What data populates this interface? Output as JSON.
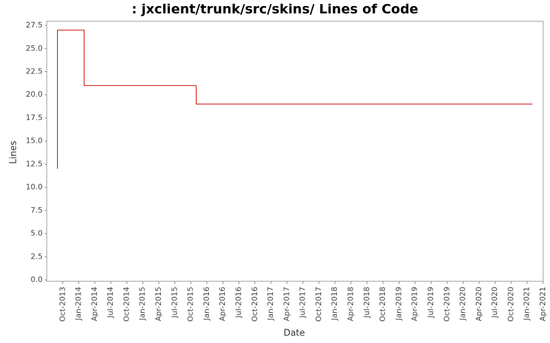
{
  "chart_data": {
    "type": "line",
    "title": ": jxclient/trunk/src/skins/ Lines of Code",
    "x_label": "Date",
    "y_label": "Lines",
    "x": [
      "2013-09",
      "2013-09",
      "2014-02",
      "2014-02",
      "2015-11",
      "2015-11",
      "2021-02"
    ],
    "series": [
      {
        "name": "Lines",
        "color": "#cc0000",
        "values": [
          12,
          27,
          27,
          21,
          21,
          19,
          19
        ]
      }
    ],
    "xlim": [
      "2013-07",
      "2021-04"
    ],
    "xticks": [
      {
        "value": "2013-10",
        "label": "Oct-2013"
      },
      {
        "value": "2014-01",
        "label": "Jan-2014"
      },
      {
        "value": "2014-04",
        "label": "Apr-2014"
      },
      {
        "value": "2014-07",
        "label": "Jul-2014"
      },
      {
        "value": "2014-10",
        "label": "Oct-2014"
      },
      {
        "value": "2015-01",
        "label": "Jan-2015"
      },
      {
        "value": "2015-04",
        "label": "Apr-2015"
      },
      {
        "value": "2015-07",
        "label": "Jul-2015"
      },
      {
        "value": "2015-10",
        "label": "Oct-2015"
      },
      {
        "value": "2016-01",
        "label": "Jan-2016"
      },
      {
        "value": "2016-04",
        "label": "Apr-2016"
      },
      {
        "value": "2016-07",
        "label": "Jul-2016"
      },
      {
        "value": "2016-10",
        "label": "Oct-2016"
      },
      {
        "value": "2017-01",
        "label": "Jan-2017"
      },
      {
        "value": "2017-04",
        "label": "Apr-2017"
      },
      {
        "value": "2017-07",
        "label": "Jul-2017"
      },
      {
        "value": "2017-10",
        "label": "Oct-2017"
      },
      {
        "value": "2018-01",
        "label": "Jan-2018"
      },
      {
        "value": "2018-04",
        "label": "Apr-2018"
      },
      {
        "value": "2018-07",
        "label": "Jul-2018"
      },
      {
        "value": "2018-10",
        "label": "Oct-2018"
      },
      {
        "value": "2019-01",
        "label": "Jan-2019"
      },
      {
        "value": "2019-04",
        "label": "Apr-2019"
      },
      {
        "value": "2019-07",
        "label": "Jul-2019"
      },
      {
        "value": "2019-10",
        "label": "Oct-2019"
      },
      {
        "value": "2020-01",
        "label": "Jan-2020"
      },
      {
        "value": "2020-04",
        "label": "Apr-2020"
      },
      {
        "value": "2020-07",
        "label": "Jul-2020"
      },
      {
        "value": "2020-10",
        "label": "Oct-2020"
      },
      {
        "value": "2021-01",
        "label": "Jan-2021"
      },
      {
        "value": "2021-04",
        "label": "Apr-2021"
      }
    ],
    "ylim": [
      -0.15,
      27.95
    ],
    "yticks": [
      {
        "value": 0,
        "label": "0.0"
      },
      2.5,
      {
        "value": 5,
        "label": "5.0"
      },
      7.5,
      {
        "value": 10,
        "label": "10.0"
      },
      12.5,
      {
        "value": 15,
        "label": "15.0"
      },
      17.5,
      {
        "value": 20,
        "label": "20.0"
      },
      22.5,
      {
        "value": 25,
        "label": "25.0"
      },
      27.5
    ],
    "grid": false
  }
}
